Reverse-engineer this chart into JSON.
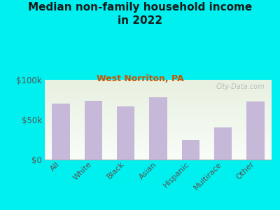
{
  "title": "Median non-family household income\nin 2022",
  "subtitle": "West Norriton, PA",
  "categories": [
    "All",
    "White",
    "Black",
    "Asian",
    "Hispanic",
    "Multirace",
    "Other"
  ],
  "values": [
    70000,
    74000,
    67000,
    78000,
    25000,
    40000,
    73000
  ],
  "bar_color": "#c5b8d8",
  "background_color": "#00efef",
  "plot_bg_top_left": "#e8f0e0",
  "plot_bg_top_right": "#d8ecd8",
  "plot_bg_bottom": "#f8fdf8",
  "title_color": "#1a1a1a",
  "subtitle_color": "#cc5500",
  "tick_label_color": "#555555",
  "ylim": [
    0,
    100000
  ],
  "yticks": [
    0,
    50000,
    100000
  ],
  "ytick_labels": [
    "$0",
    "$50k",
    "$100k"
  ],
  "watermark": "City-Data.com"
}
